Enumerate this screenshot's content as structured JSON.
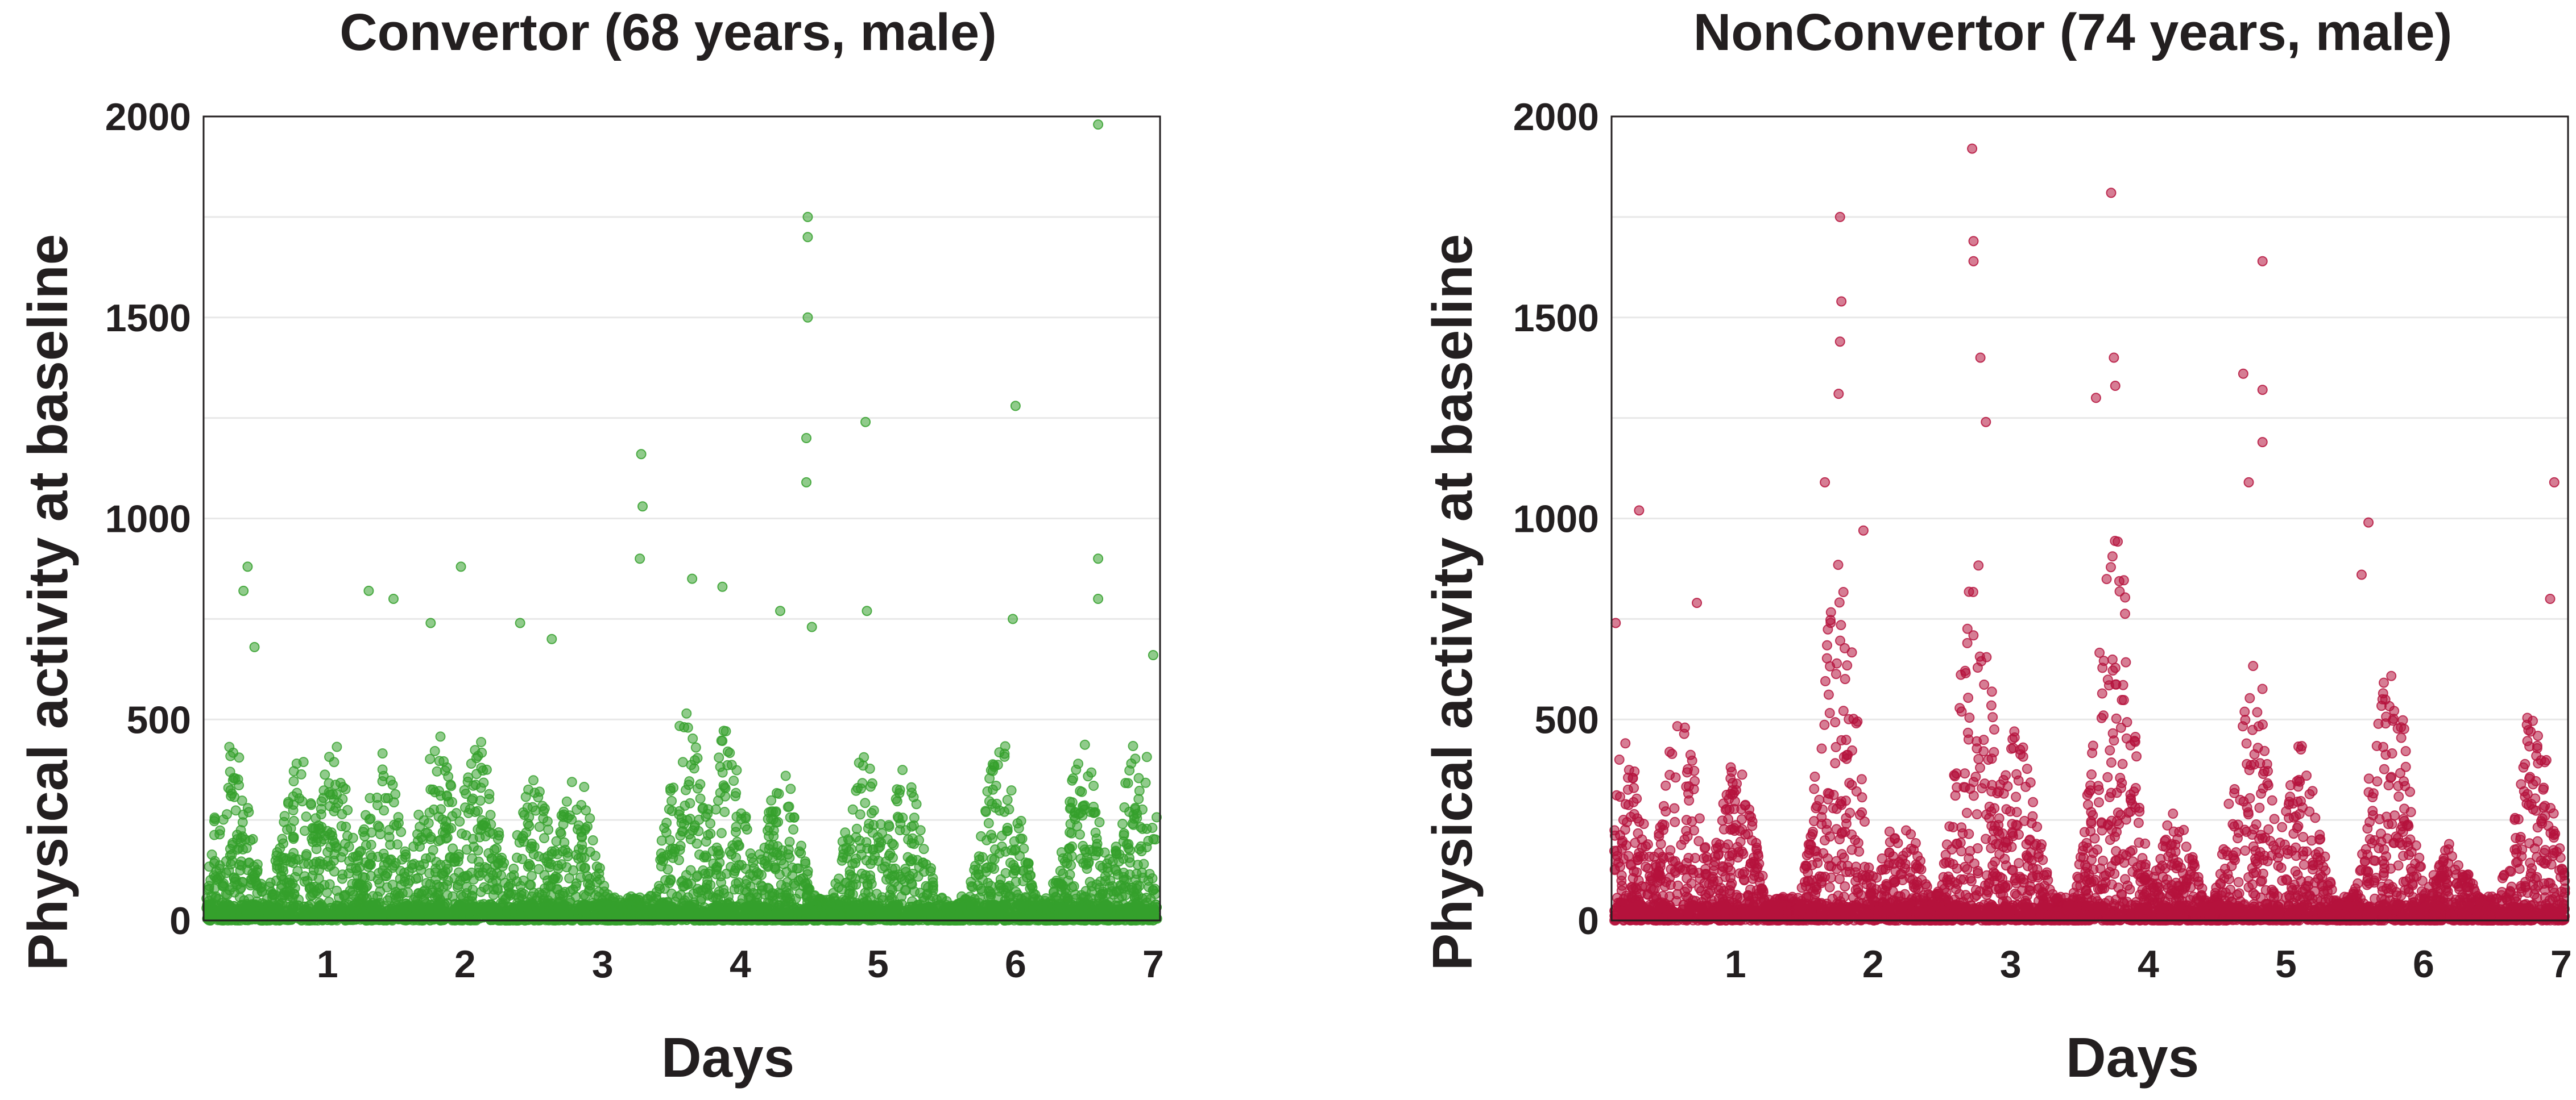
{
  "chart_data": [
    {
      "type": "scatter",
      "title": "Convertor (68 years, male)",
      "xlabel": "Days",
      "ylabel": "Physical activity at baseline",
      "xlim": [
        0.1,
        7.05
      ],
      "ylim": [
        0,
        2000
      ],
      "xticks": [
        "1",
        "2",
        "3",
        "4",
        "5",
        "6",
        "7"
      ],
      "yticks": [
        "0",
        "500",
        "1000",
        "1500",
        "2000"
      ],
      "grid": "horizontal",
      "legend": "none",
      "color": "#34a02c",
      "series_note": "dense minute-level points; baseline bulk approximated, outliers listed",
      "outliers": [
        {
          "x": 0.42,
          "y": 880
        },
        {
          "x": 0.39,
          "y": 820
        },
        {
          "x": 0.47,
          "y": 680
        },
        {
          "x": 1.3,
          "y": 820
        },
        {
          "x": 1.48,
          "y": 800
        },
        {
          "x": 1.75,
          "y": 740
        },
        {
          "x": 1.97,
          "y": 880
        },
        {
          "x": 2.4,
          "y": 740
        },
        {
          "x": 2.63,
          "y": 700
        },
        {
          "x": 3.28,
          "y": 1160
        },
        {
          "x": 3.29,
          "y": 1030
        },
        {
          "x": 3.27,
          "y": 900
        },
        {
          "x": 3.65,
          "y": 850
        },
        {
          "x": 3.87,
          "y": 830
        },
        {
          "x": 4.29,
          "y": 770
        },
        {
          "x": 4.49,
          "y": 1750
        },
        {
          "x": 4.49,
          "y": 1700
        },
        {
          "x": 4.49,
          "y": 1500
        },
        {
          "x": 4.48,
          "y": 1200
        },
        {
          "x": 4.48,
          "y": 1090
        },
        {
          "x": 4.52,
          "y": 730
        },
        {
          "x": 4.91,
          "y": 1240
        },
        {
          "x": 4.92,
          "y": 770
        },
        {
          "x": 6.0,
          "y": 1280
        },
        {
          "x": 5.98,
          "y": 750
        },
        {
          "x": 6.6,
          "y": 1980
        },
        {
          "x": 6.6,
          "y": 900
        },
        {
          "x": 6.6,
          "y": 800
        },
        {
          "x": 7.0,
          "y": 660
        }
      ],
      "density_profile": [
        {
          "x": 0.3,
          "peak": 450
        },
        {
          "x": 0.8,
          "peak": 420
        },
        {
          "x": 1.05,
          "peak": 440
        },
        {
          "x": 1.4,
          "peak": 420
        },
        {
          "x": 1.8,
          "peak": 480
        },
        {
          "x": 2.1,
          "peak": 460
        },
        {
          "x": 2.5,
          "peak": 350
        },
        {
          "x": 2.8,
          "peak": 380
        },
        {
          "x": 3.6,
          "peak": 520
        },
        {
          "x": 3.9,
          "peak": 480
        },
        {
          "x": 4.3,
          "peak": 380
        },
        {
          "x": 4.9,
          "peak": 420
        },
        {
          "x": 5.2,
          "peak": 380
        },
        {
          "x": 5.9,
          "peak": 460
        },
        {
          "x": 6.5,
          "peak": 450
        },
        {
          "x": 6.9,
          "peak": 480
        }
      ]
    },
    {
      "type": "scatter",
      "title": "NonConvertor (74 years, male)",
      "xlabel": "Days",
      "ylabel": "Physical activity at baseline",
      "xlim": [
        0.1,
        7.05
      ],
      "ylim": [
        0,
        2000
      ],
      "xticks": [
        "1",
        "2",
        "3",
        "4",
        "5",
        "6",
        "7"
      ],
      "yticks": [
        "0",
        "500",
        "1000",
        "1500",
        "2000"
      ],
      "grid": "horizontal",
      "legend": "none",
      "color": "#b5123c",
      "series_note": "dense minute-level points; baseline bulk approximated, outliers listed",
      "outliers": [
        {
          "x": 0.3,
          "y": 1020
        },
        {
          "x": 0.13,
          "y": 740
        },
        {
          "x": 0.72,
          "y": 790
        },
        {
          "x": 1.65,
          "y": 1090
        },
        {
          "x": 1.76,
          "y": 1750
        },
        {
          "x": 1.77,
          "y": 1540
        },
        {
          "x": 1.76,
          "y": 1440
        },
        {
          "x": 1.75,
          "y": 1310
        },
        {
          "x": 1.93,
          "y": 970
        },
        {
          "x": 2.72,
          "y": 1920
        },
        {
          "x": 2.73,
          "y": 1690
        },
        {
          "x": 2.73,
          "y": 1640
        },
        {
          "x": 2.78,
          "y": 1400
        },
        {
          "x": 2.82,
          "y": 1240
        },
        {
          "x": 3.73,
          "y": 1810
        },
        {
          "x": 3.75,
          "y": 1400
        },
        {
          "x": 3.76,
          "y": 1330
        },
        {
          "x": 3.62,
          "y": 1300
        },
        {
          "x": 4.69,
          "y": 1360
        },
        {
          "x": 4.83,
          "y": 1640
        },
        {
          "x": 4.83,
          "y": 1320
        },
        {
          "x": 4.83,
          "y": 1190
        },
        {
          "x": 4.73,
          "y": 1090
        },
        {
          "x": 5.6,
          "y": 990
        },
        {
          "x": 5.55,
          "y": 860
        },
        {
          "x": 6.95,
          "y": 1090
        },
        {
          "x": 6.92,
          "y": 800
        }
      ],
      "density_profile": [
        {
          "x": 0.2,
          "peak": 450
        },
        {
          "x": 0.6,
          "peak": 520
        },
        {
          "x": 1.0,
          "peak": 400
        },
        {
          "x": 1.75,
          "peak": 900
        },
        {
          "x": 2.2,
          "peak": 280
        },
        {
          "x": 2.75,
          "peak": 900
        },
        {
          "x": 3.05,
          "peak": 500
        },
        {
          "x": 3.75,
          "peak": 1000
        },
        {
          "x": 4.2,
          "peak": 280
        },
        {
          "x": 4.75,
          "peak": 700
        },
        {
          "x": 5.1,
          "peak": 450
        },
        {
          "x": 5.75,
          "peak": 700
        },
        {
          "x": 6.2,
          "peak": 200
        },
        {
          "x": 6.8,
          "peak": 550
        }
      ]
    }
  ]
}
